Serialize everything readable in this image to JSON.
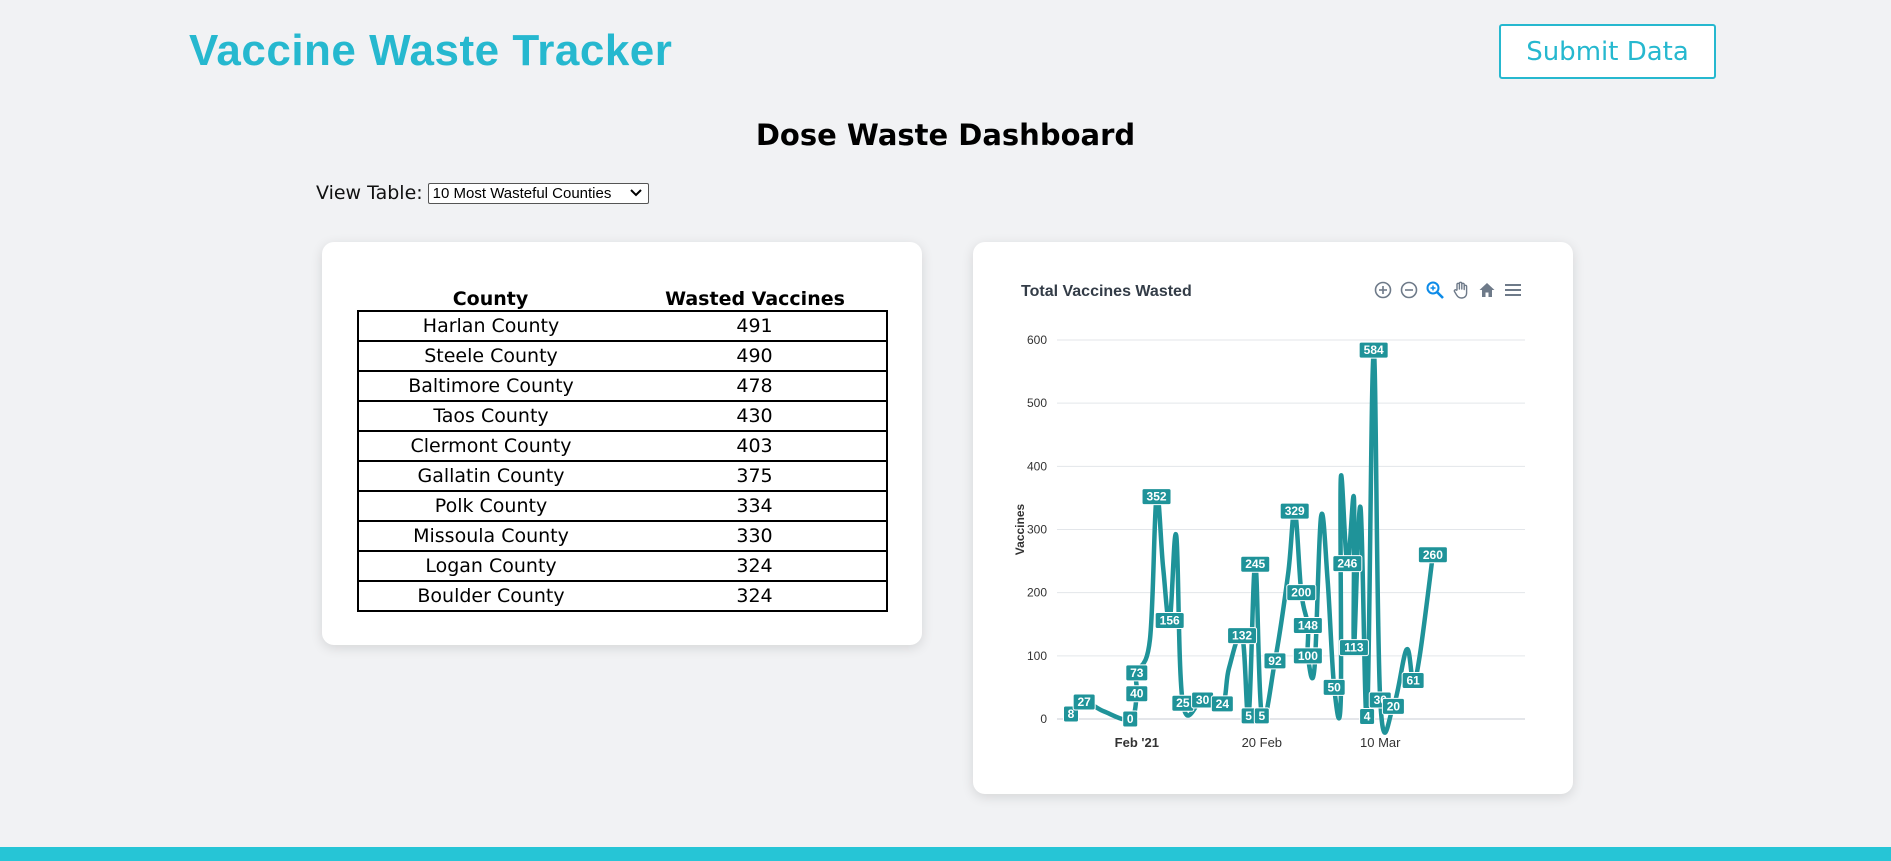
{
  "header": {
    "brand": "Vaccine Waste Tracker",
    "submit_label": "Submit Data"
  },
  "dashboard": {
    "title": "Dose Waste Dashboard",
    "view_label": "View Table:",
    "view_selected": "10 Most Wasteful Counties"
  },
  "table": {
    "headers": [
      "County",
      "Wasted Vaccines"
    ],
    "rows": [
      [
        "Harlan County",
        "491"
      ],
      [
        "Steele County",
        "490"
      ],
      [
        "Baltimore County",
        "478"
      ],
      [
        "Taos County",
        "430"
      ],
      [
        "Clermont County",
        "403"
      ],
      [
        "Gallatin County",
        "375"
      ],
      [
        "Polk County",
        "334"
      ],
      [
        "Missoula County",
        "330"
      ],
      [
        "Logan County",
        "324"
      ],
      [
        "Boulder County",
        "324"
      ]
    ]
  },
  "chart_toolbar": [
    "zoom-in-icon",
    "zoom-out-icon",
    "zoom-select-icon",
    "pan-hand-icon",
    "home-icon",
    "menu-icon"
  ],
  "colors": {
    "accent": "#26b8cf",
    "series": "#1f9399",
    "bottom_bar": "#26c5d6"
  },
  "chart_data": {
    "type": "line",
    "title": "Total Vaccines Wasted",
    "xlabel": "",
    "ylabel": "Vaccines",
    "ylim": [
      0,
      600
    ],
    "yticks": [
      0,
      100,
      200,
      300,
      400,
      500,
      600
    ],
    "xlim": [
      "2021-01-22",
      "2021-04-01"
    ],
    "xticks": [
      {
        "date": "2021-02-01",
        "label": "Feb '21",
        "bold": true
      },
      {
        "date": "2021-02-20",
        "label": "20 Feb",
        "bold": false
      },
      {
        "date": "2021-03-10",
        "label": "10 Mar",
        "bold": false
      }
    ],
    "grid": true,
    "series": [
      {
        "color": "#1f9399",
        "points": [
          [
            "2021-01-22",
            8
          ],
          [
            "2021-01-24",
            27
          ],
          [
            "2021-01-27",
            12
          ],
          [
            "2021-01-31",
            0
          ],
          [
            "2021-02-01",
            40
          ],
          [
            "2021-02-01",
            73
          ],
          [
            "2021-02-03",
            126
          ],
          [
            "2021-02-04",
            352
          ],
          [
            "2021-02-05",
            240
          ],
          [
            "2021-02-06",
            156
          ],
          [
            "2021-02-07",
            290
          ],
          [
            "2021-02-08",
            25
          ],
          [
            "2021-02-11",
            30
          ],
          [
            "2021-02-14",
            24
          ],
          [
            "2021-02-15",
            80
          ],
          [
            "2021-02-17",
            132
          ],
          [
            "2021-02-18",
            5
          ],
          [
            "2021-02-19",
            245
          ],
          [
            "2021-02-20",
            5
          ],
          [
            "2021-02-22",
            92
          ],
          [
            "2021-02-24",
            230
          ],
          [
            "2021-02-25",
            329
          ],
          [
            "2021-02-26",
            200
          ],
          [
            "2021-02-27",
            148
          ],
          [
            "2021-02-27",
            100
          ],
          [
            "2021-02-28",
            80
          ],
          [
            "2021-03-01",
            320
          ],
          [
            "2021-03-02",
            220
          ],
          [
            "2021-03-03",
            50
          ],
          [
            "2021-03-04",
            30
          ],
          [
            "2021-03-04",
            380
          ],
          [
            "2021-03-05",
            246
          ],
          [
            "2021-03-06",
            350
          ],
          [
            "2021-03-06",
            113
          ],
          [
            "2021-03-07",
            335
          ],
          [
            "2021-03-08",
            4
          ],
          [
            "2021-03-09",
            584
          ],
          [
            "2021-03-10",
            30
          ],
          [
            "2021-03-12",
            20
          ],
          [
            "2021-03-14",
            110
          ],
          [
            "2021-03-15",
            61
          ],
          [
            "2021-03-16",
            100
          ],
          [
            "2021-03-18",
            260
          ]
        ],
        "labels": [
          [
            "2021-01-22",
            8
          ],
          [
            "2021-01-24",
            27
          ],
          [
            "2021-01-31",
            0
          ],
          [
            "2021-02-01",
            40
          ],
          [
            "2021-02-01",
            73
          ],
          [
            "2021-02-04",
            352
          ],
          [
            "2021-02-06",
            156
          ],
          [
            "2021-02-08",
            25
          ],
          [
            "2021-02-11",
            30
          ],
          [
            "2021-02-14",
            24
          ],
          [
            "2021-02-17",
            132
          ],
          [
            "2021-02-18",
            5
          ],
          [
            "2021-02-19",
            245
          ],
          [
            "2021-02-20",
            5
          ],
          [
            "2021-02-22",
            92
          ],
          [
            "2021-02-25",
            329
          ],
          [
            "2021-02-26",
            200
          ],
          [
            "2021-02-27",
            148
          ],
          [
            "2021-02-27",
            100
          ],
          [
            "2021-03-03",
            50
          ],
          [
            "2021-03-05",
            246
          ],
          [
            "2021-03-06",
            113
          ],
          [
            "2021-03-08",
            4
          ],
          [
            "2021-03-09",
            584
          ],
          [
            "2021-03-10",
            30
          ],
          [
            "2021-03-12",
            20
          ],
          [
            "2021-03-15",
            61
          ],
          [
            "2021-03-18",
            260
          ]
        ]
      }
    ]
  }
}
